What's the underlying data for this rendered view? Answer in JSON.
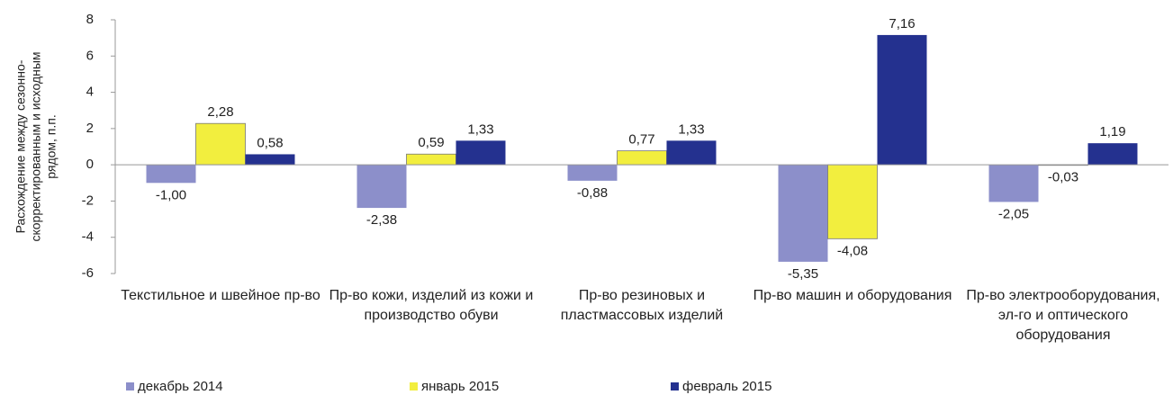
{
  "chart_data": {
    "type": "bar",
    "y_label": "Расхождение между сезонно-скорректированным и исходным рядом, п.п.",
    "categories": [
      "Текстильное и швейное пр-во",
      "Пр-во кожи, изделий из кожи и производство обуви",
      "Пр-во резиновых и пластмассовых изделий",
      "Пр-во машин и оборудования",
      "Пр-во электрооборудования, эл-го и оптического оборудования"
    ],
    "series": [
      {
        "name": "декабрь 2014",
        "color": "#8c8fca",
        "values": [
          -1.0,
          -2.38,
          -0.88,
          -5.35,
          -2.05
        ],
        "value_labels": [
          "-1,00",
          "-2,38",
          "-0,88",
          "-5,35",
          "-2,05"
        ]
      },
      {
        "name": "январь 2015",
        "color": "#f2ee3e",
        "values": [
          2.28,
          0.59,
          0.77,
          -4.08,
          -0.03
        ],
        "value_labels": [
          "2,28",
          "0,59",
          "0,77",
          "-4,08",
          "-0,03"
        ]
      },
      {
        "name": "февраль 2015",
        "color": "#24318f",
        "values": [
          0.58,
          1.33,
          1.33,
          7.16,
          1.19
        ],
        "value_labels": [
          "0,58",
          "1,33",
          "1,33",
          "7,16",
          "1,19"
        ]
      }
    ],
    "ylim": [
      -6,
      8
    ],
    "yticks": [
      -6,
      -4,
      -2,
      0,
      2,
      4,
      6,
      8
    ],
    "grid": false,
    "legend": "bottom"
  }
}
